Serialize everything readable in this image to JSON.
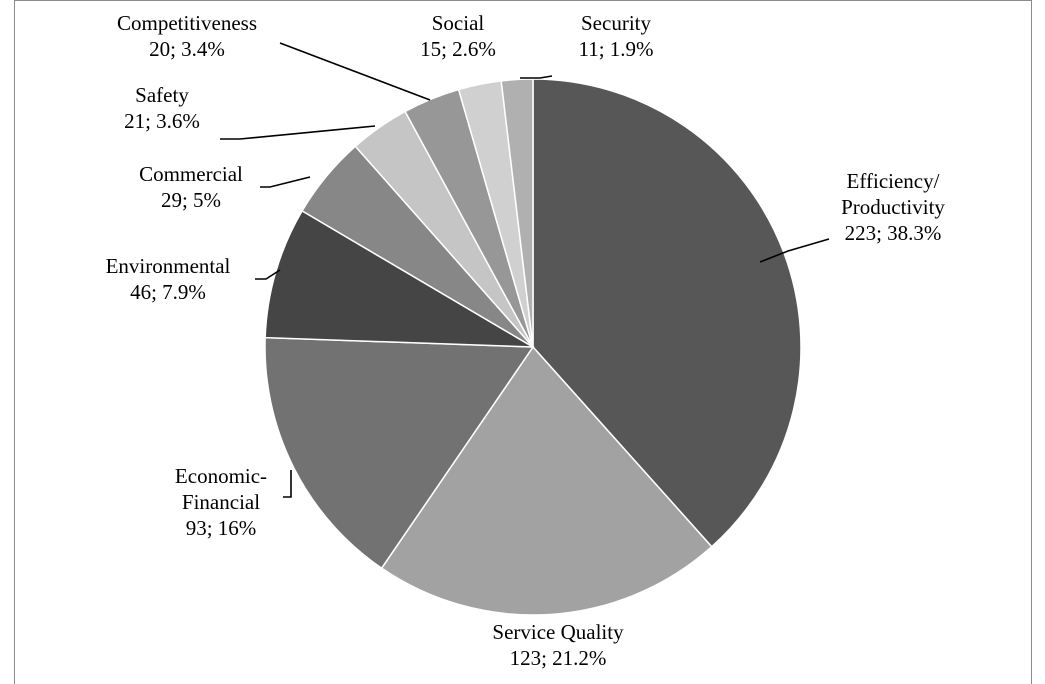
{
  "chart_data": {
    "type": "pie",
    "title": "",
    "start_angle_deg": 0,
    "direction": "clockwise",
    "slices": [
      {
        "name": "Efficiency/ Productivity",
        "label_lines": [
          "Efficiency/",
          "Productivity"
        ],
        "value": 223,
        "percent": "38.3%",
        "value_text": "223; 38.3%",
        "color": "#575757"
      },
      {
        "name": "Service Quality",
        "label_lines": [
          "Service Quality"
        ],
        "value": 123,
        "percent": "21.2%",
        "value_text": "123; 21.2%",
        "color": "#a2a2a2"
      },
      {
        "name": "Economic-Financial",
        "label_lines": [
          "Economic-",
          "Financial"
        ],
        "value": 93,
        "percent": "16%",
        "value_text": "93; 16%",
        "color": "#727272"
      },
      {
        "name": "Environmental",
        "label_lines": [
          "Environmental"
        ],
        "value": 46,
        "percent": "7.9%",
        "value_text": "46; 7.9%",
        "color": "#454545"
      },
      {
        "name": "Commercial",
        "label_lines": [
          "Commercial"
        ],
        "value": 29,
        "percent": "5%",
        "value_text": "29; 5%",
        "color": "#878787"
      },
      {
        "name": "Safety",
        "label_lines": [
          "Safety"
        ],
        "value": 21,
        "percent": "3.6%",
        "value_text": "21; 3.6%",
        "color": "#c5c5c5"
      },
      {
        "name": "Competitiveness",
        "label_lines": [
          "Competitiveness"
        ],
        "value": 20,
        "percent": "3.4%",
        "value_text": "20; 3.4%",
        "color": "#979797"
      },
      {
        "name": "Social",
        "label_lines": [
          "Social"
        ],
        "value": 15,
        "percent": "2.6%",
        "value_text": "15; 2.6%",
        "color": "#d0d0d0"
      },
      {
        "name": "Security",
        "label_lines": [
          "Security"
        ],
        "value": 11,
        "percent": "1.9%",
        "value_text": "11; 1.9%",
        "color": "#b0b0b0"
      }
    ]
  }
}
